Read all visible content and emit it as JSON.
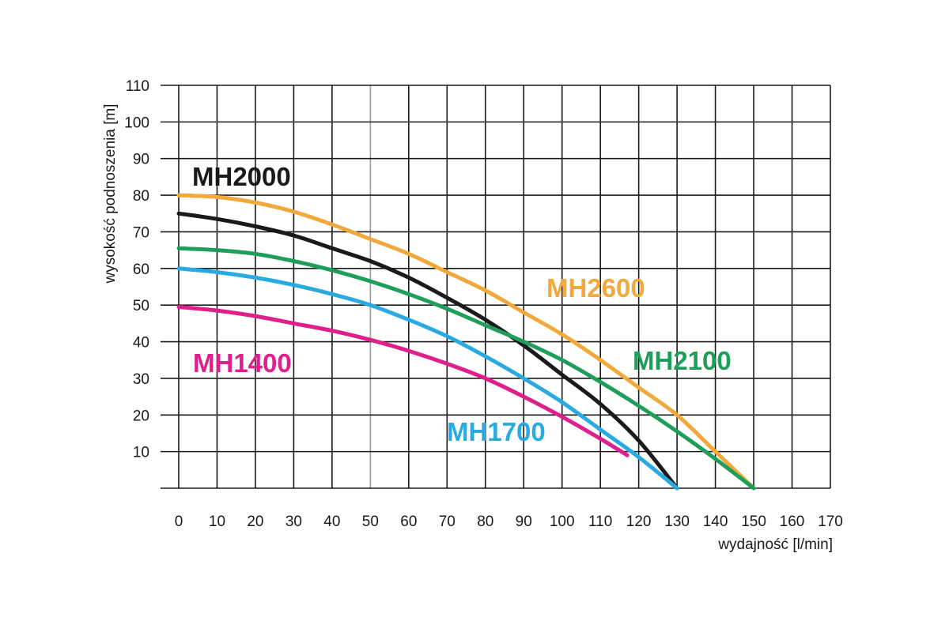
{
  "chart_data": {
    "type": "line",
    "xlabel": "wydajność [l/min]",
    "ylabel": "wysokość podnoszenia [m]",
    "xlim": [
      0,
      170
    ],
    "ylim": [
      0,
      110
    ],
    "xticks": [
      0,
      10,
      20,
      30,
      40,
      50,
      60,
      70,
      80,
      90,
      100,
      110,
      120,
      130,
      140,
      150,
      160,
      170
    ],
    "yticks": [
      10,
      20,
      30,
      40,
      50,
      60,
      70,
      80,
      90,
      100,
      110
    ],
    "grid": true,
    "series": [
      {
        "name": "MH2600",
        "color": "#F2A93B",
        "points": [
          [
            0,
            80
          ],
          [
            10,
            79.5
          ],
          [
            20,
            78
          ],
          [
            30,
            75.5
          ],
          [
            40,
            72
          ],
          [
            50,
            68
          ],
          [
            60,
            64
          ],
          [
            70,
            59
          ],
          [
            80,
            54
          ],
          [
            90,
            48
          ],
          [
            100,
            42
          ],
          [
            110,
            35
          ],
          [
            120,
            27.5
          ],
          [
            130,
            20
          ],
          [
            140,
            10
          ],
          [
            150,
            0
          ]
        ]
      },
      {
        "name": "MH2000",
        "color": "#1A1A1A",
        "points": [
          [
            0,
            75
          ],
          [
            10,
            73.5
          ],
          [
            20,
            71.5
          ],
          [
            30,
            69
          ],
          [
            40,
            65.5
          ],
          [
            50,
            62
          ],
          [
            60,
            57.5
          ],
          [
            70,
            52
          ],
          [
            80,
            46
          ],
          [
            90,
            39
          ],
          [
            100,
            31
          ],
          [
            110,
            23
          ],
          [
            120,
            13
          ],
          [
            130,
            0
          ]
        ]
      },
      {
        "name": "MH2100",
        "color": "#1E9E5A",
        "points": [
          [
            0,
            65.5
          ],
          [
            10,
            65
          ],
          [
            20,
            64
          ],
          [
            30,
            62
          ],
          [
            40,
            59.5
          ],
          [
            50,
            56.5
          ],
          [
            60,
            53
          ],
          [
            70,
            49
          ],
          [
            80,
            44.5
          ],
          [
            90,
            40
          ],
          [
            100,
            35
          ],
          [
            110,
            29
          ],
          [
            120,
            22.5
          ],
          [
            130,
            15.5
          ],
          [
            140,
            8
          ],
          [
            150,
            0
          ]
        ]
      },
      {
        "name": "MH1700",
        "color": "#29ABE2",
        "points": [
          [
            0,
            60
          ],
          [
            10,
            59
          ],
          [
            20,
            57.5
          ],
          [
            30,
            55.5
          ],
          [
            40,
            53
          ],
          [
            50,
            50
          ],
          [
            60,
            46
          ],
          [
            70,
            41.5
          ],
          [
            80,
            36
          ],
          [
            90,
            30
          ],
          [
            100,
            23.5
          ],
          [
            110,
            16
          ],
          [
            120,
            8.5
          ],
          [
            130,
            0
          ]
        ]
      },
      {
        "name": "MH1400",
        "color": "#E01E8C",
        "points": [
          [
            0,
            49.5
          ],
          [
            10,
            48.5
          ],
          [
            20,
            47
          ],
          [
            30,
            45
          ],
          [
            40,
            43
          ],
          [
            50,
            40.5
          ],
          [
            60,
            37.5
          ],
          [
            70,
            34
          ],
          [
            80,
            30
          ],
          [
            90,
            25
          ],
          [
            100,
            19.5
          ],
          [
            110,
            13.5
          ],
          [
            117,
            9
          ]
        ]
      }
    ]
  }
}
